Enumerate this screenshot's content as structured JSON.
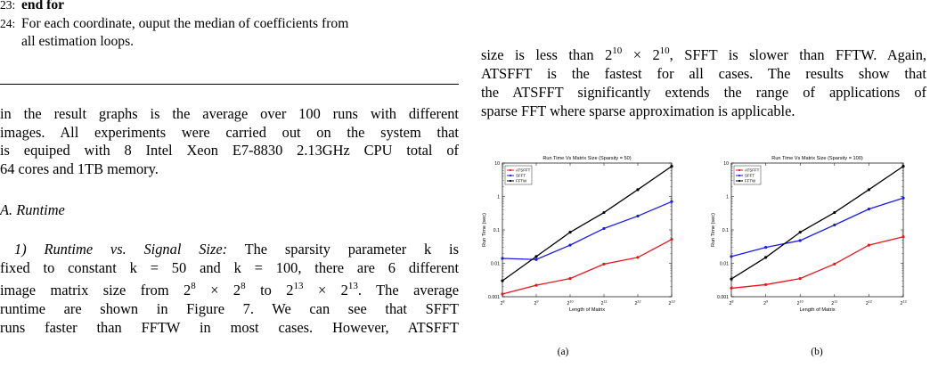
{
  "algorithm": {
    "line23_num": "23:",
    "line23_text": "end for",
    "line24_num": "24:",
    "line24_text_a": "For each coordinate, ouput the median of coefficients from",
    "line24_text_b": "all estimation loops."
  },
  "left_para": {
    "l1": "in the result graphs is the average over 100 runs with different",
    "l2": "images. All experiments were carried out on the system that",
    "l3": "is equiped with 8 Intel Xeon E7-8830 2.13GHz CPU total of",
    "l4": "64 cores and 1TB memory."
  },
  "section": {
    "heading": "A. Runtime"
  },
  "subsection": {
    "heading": "1) Runtime vs. Signal Size:",
    "l1_rest": "The sparsity parameter k is",
    "l2": "fixed to constant k = 50 and k = 100, there are 6 different",
    "l3_a": "image matrix size from 2",
    "l3_b": "8",
    "l3_c": " × 2",
    "l3_d": "8",
    "l3_e": " to 2",
    "l3_f": "13",
    "l3_g": " × 2",
    "l3_h": "13",
    "l3_i": ". The average",
    "l4": "runtime are shown in Figure 7. We can see that SFFT",
    "l5": "runs faster than FFTW in most cases. However, ATSFFT"
  },
  "right_para": {
    "l1_a": "size is less than 2",
    "l1_b": "10",
    "l1_c": " × 2",
    "l1_d": "10",
    "l1_e": ", SFFT is slower than FFTW. Again,",
    "l2": "ATSFFT is the fastest for all cases. The results show that",
    "l3": "the ATSFFT significantly extends the range of applications of",
    "l4": "sparse FFT where sparse approximation is applicable."
  },
  "figure": {
    "captions": [
      "(a)",
      "(b)"
    ]
  },
  "colors": {
    "ATSFFT": "#e8141e",
    "SFFT": "#1a1aee",
    "FFTW": "#000000"
  },
  "chart_data": [
    {
      "type": "line",
      "title": "Run Time Vs Matrix Size (Sparsity = 50)",
      "xlabel": "Length of Matrix",
      "ylabel": "Run Time (sec)",
      "x_ticks": [
        "2^8",
        "2^9",
        "2^10",
        "2^11",
        "2^12",
        "2^13"
      ],
      "y_scale": "log",
      "y_ticks": [
        "0.001",
        "0.01",
        "0.1",
        "1",
        "10"
      ],
      "ylim": [
        0.001,
        10
      ],
      "legend_position": "top-left",
      "grid": false,
      "series": [
        {
          "name": "ATSFFT",
          "values": [
            0.0012,
            0.0022,
            0.0035,
            0.0095,
            0.015,
            0.052
          ]
        },
        {
          "name": "SFFT",
          "values": [
            0.014,
            0.013,
            0.035,
            0.11,
            0.26,
            0.7
          ]
        },
        {
          "name": "FFTW",
          "values": [
            0.003,
            0.016,
            0.085,
            0.33,
            1.6,
            8.0
          ]
        }
      ]
    },
    {
      "type": "line",
      "title": "Run Time Vs Matrix Size (Sparsity = 100)",
      "xlabel": "Length of Matrix",
      "ylabel": "Run Time (sec)",
      "x_ticks": [
        "2^8",
        "2^9",
        "2^10",
        "2^11",
        "2^12",
        "2^13"
      ],
      "y_scale": "log",
      "y_ticks": [
        "0.001",
        "0.01",
        "0.1",
        "1",
        "10"
      ],
      "ylim": [
        0.001,
        10
      ],
      "legend_position": "top-left",
      "grid": false,
      "series": [
        {
          "name": "ATSFFT",
          "values": [
            0.0018,
            0.0023,
            0.0035,
            0.0095,
            0.035,
            0.062
          ]
        },
        {
          "name": "SFFT",
          "values": [
            0.016,
            0.03,
            0.048,
            0.14,
            0.42,
            0.9
          ]
        },
        {
          "name": "FFTW",
          "values": [
            0.0034,
            0.015,
            0.085,
            0.33,
            1.6,
            8.0
          ]
        }
      ]
    }
  ]
}
